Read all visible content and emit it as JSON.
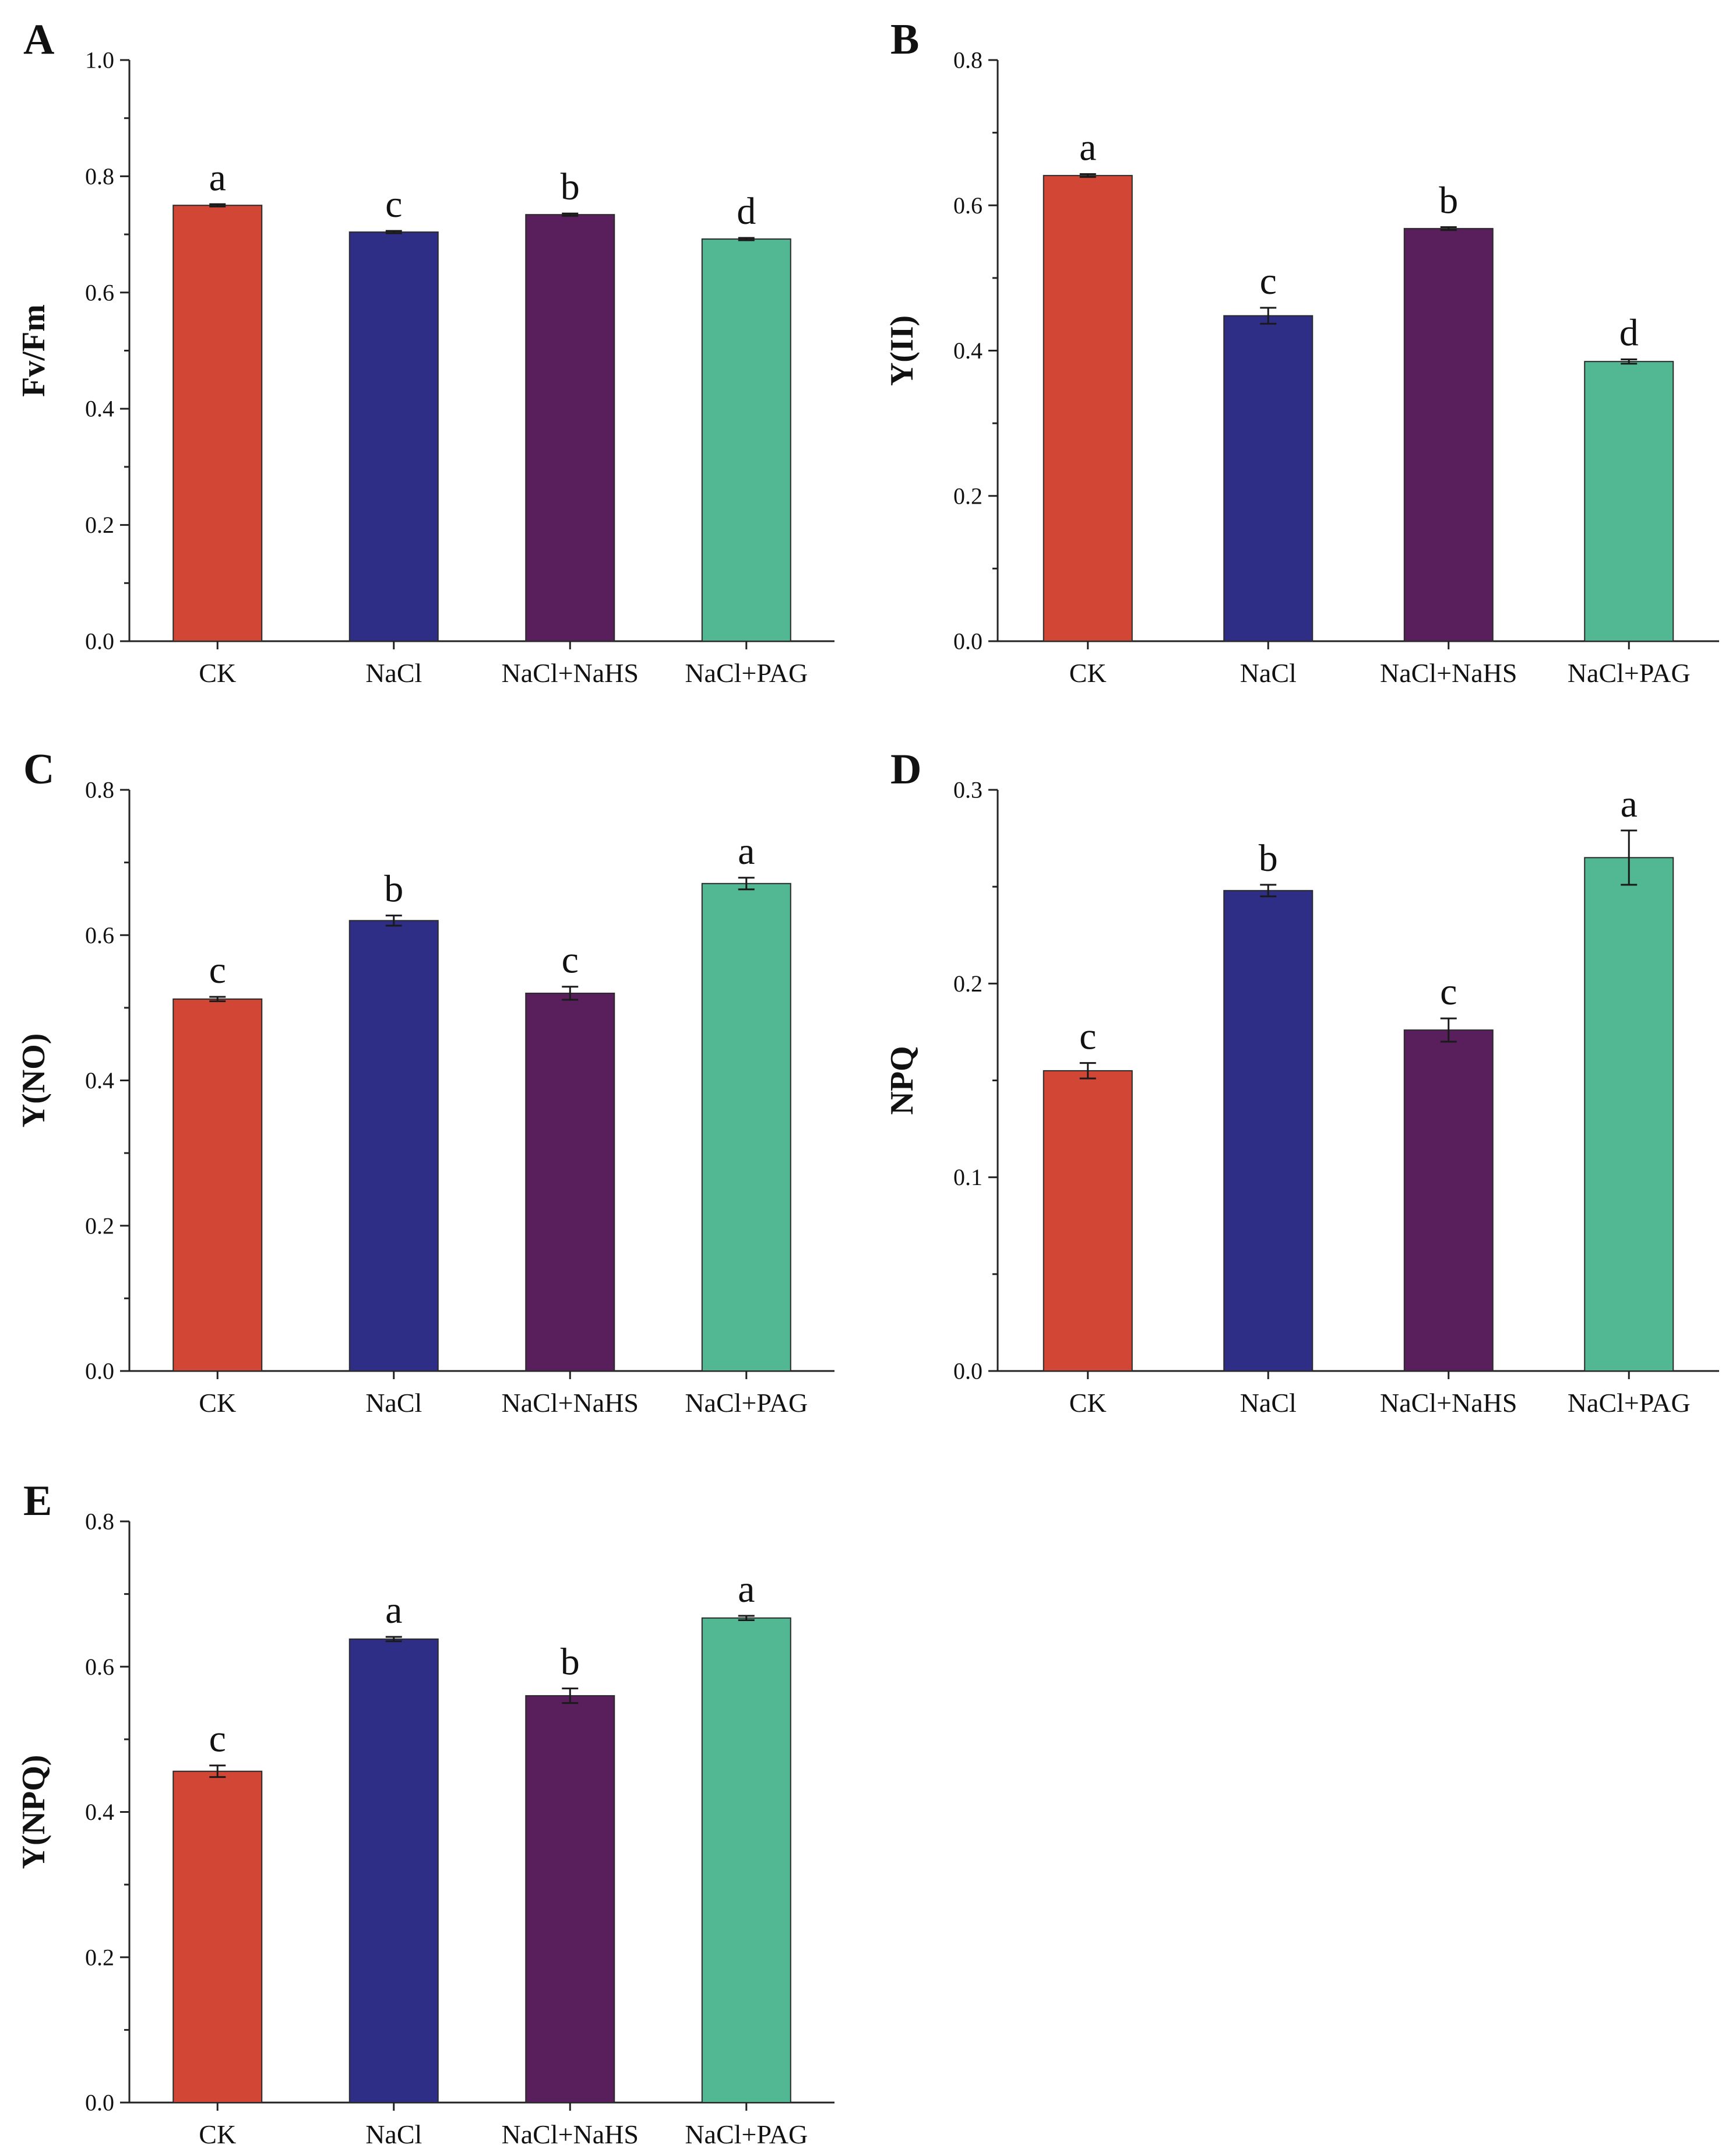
{
  "figure": {
    "categories": [
      "CK",
      "NaCl",
      "NaCl+NaHS",
      "NaCl+PAG"
    ],
    "colors": [
      "#d24636",
      "#2f2e86",
      "#581f5c",
      "#52b793"
    ]
  },
  "chart_data": [
    {
      "type": "bar",
      "panel": "A",
      "ylabel": "Fv/Fm",
      "categories": [
        "CK",
        "NaCl",
        "NaCl+NaHS",
        "NaCl+PAG"
      ],
      "values": [
        0.75,
        0.704,
        0.734,
        0.692
      ],
      "errors": [
        0.002,
        0.002,
        0.002,
        0.002
      ],
      "significance": [
        "a",
        "c",
        "b",
        "d"
      ],
      "ylim": [
        0,
        1.0
      ],
      "yticks": [
        "0.0",
        "0.2",
        "0.4",
        "0.6",
        "0.8",
        "1.0"
      ]
    },
    {
      "type": "bar",
      "panel": "B",
      "ylabel": "Y(II)",
      "categories": [
        "CK",
        "NaCl",
        "NaCl+NaHS",
        "NaCl+PAG"
      ],
      "values": [
        0.641,
        0.448,
        0.568,
        0.385
      ],
      "errors": [
        0.002,
        0.011,
        0.002,
        0.003
      ],
      "significance": [
        "a",
        "c",
        "b",
        "d"
      ],
      "ylim": [
        0,
        0.8
      ],
      "yticks": [
        "0.0",
        "0.2",
        "0.4",
        "0.6",
        "0.8"
      ]
    },
    {
      "type": "bar",
      "panel": "C",
      "ylabel": "Y(NO)",
      "categories": [
        "CK",
        "NaCl",
        "NaCl+NaHS",
        "NaCl+PAG"
      ],
      "values": [
        0.512,
        0.62,
        0.52,
        0.671
      ],
      "errors": [
        0.003,
        0.007,
        0.009,
        0.008
      ],
      "significance": [
        "c",
        "b",
        "c",
        "a"
      ],
      "ylim": [
        0,
        0.8
      ],
      "yticks": [
        "0.0",
        "0.2",
        "0.4",
        "0.6",
        "0.8"
      ]
    },
    {
      "type": "bar",
      "panel": "D",
      "ylabel": "NPQ",
      "categories": [
        "CK",
        "NaCl",
        "NaCl+NaHS",
        "NaCl+PAG"
      ],
      "values": [
        0.155,
        0.248,
        0.176,
        0.265
      ],
      "errors": [
        0.004,
        0.003,
        0.006,
        0.014
      ],
      "significance": [
        "c",
        "b",
        "c",
        "a"
      ],
      "ylim": [
        0,
        0.3
      ],
      "yticks": [
        "0.0",
        "0.1",
        "0.2",
        "0.3"
      ]
    },
    {
      "type": "bar",
      "panel": "E",
      "ylabel": "Y(NPQ)",
      "categories": [
        "CK",
        "NaCl",
        "NaCl+NaHS",
        "NaCl+PAG"
      ],
      "values": [
        0.456,
        0.638,
        0.56,
        0.667
      ],
      "errors": [
        0.008,
        0.003,
        0.01,
        0.003
      ],
      "significance": [
        "c",
        "a",
        "b",
        "a"
      ],
      "ylim": [
        0,
        0.8
      ],
      "yticks": [
        "0.0",
        "0.2",
        "0.4",
        "0.6",
        "0.8"
      ]
    }
  ]
}
